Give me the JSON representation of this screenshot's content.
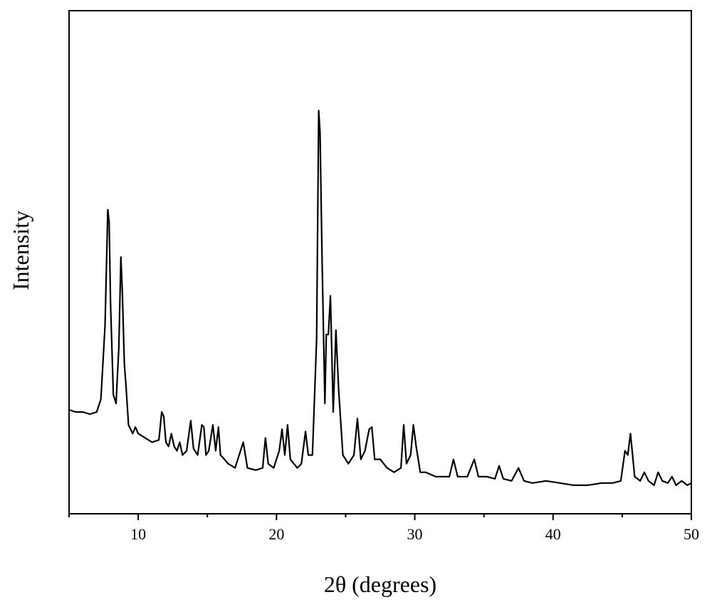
{
  "chart_data": {
    "type": "line",
    "title": "",
    "xlabel": "2θ (degrees)",
    "ylabel": "Intensity",
    "xlim": [
      5,
      50
    ],
    "ylim": [
      0,
      1
    ],
    "xticks": [
      10,
      20,
      30,
      40,
      50
    ],
    "yticks": [],
    "grid": false,
    "legend": "none",
    "line_color": "#000000",
    "series": [
      {
        "x": [
          5.0,
          5.5,
          6.0,
          6.5,
          7.0,
          7.3,
          7.6,
          7.8,
          7.9,
          8.0,
          8.2,
          8.4,
          8.6,
          8.75,
          8.85,
          9.0,
          9.1,
          9.3,
          9.6,
          9.8,
          10.0,
          10.5,
          11.0,
          11.5,
          11.7,
          11.85,
          12.0,
          12.2,
          12.4,
          12.6,
          12.8,
          13.0,
          13.2,
          13.5,
          13.8,
          14.0,
          14.3,
          14.6,
          14.75,
          14.9,
          15.1,
          15.4,
          15.6,
          15.8,
          15.95,
          16.1,
          16.5,
          17.0,
          17.3,
          17.6,
          17.9,
          18.5,
          19.0,
          19.2,
          19.4,
          19.8,
          20.2,
          20.4,
          20.6,
          20.8,
          21.0,
          21.5,
          21.8,
          22.1,
          22.3,
          22.6,
          22.9,
          23.05,
          23.15,
          23.3,
          23.5,
          23.6,
          23.75,
          23.9,
          24.1,
          24.3,
          24.5,
          24.8,
          25.2,
          25.6,
          25.85,
          26.1,
          26.4,
          26.7,
          26.9,
          27.1,
          27.5,
          28.0,
          28.5,
          29.0,
          29.2,
          29.4,
          29.7,
          29.9,
          30.1,
          30.4,
          30.8,
          31.5,
          32.0,
          32.5,
          32.8,
          33.1,
          33.8,
          34.3,
          34.6,
          35.2,
          35.8,
          36.1,
          36.4,
          37.0,
          37.5,
          37.9,
          38.5,
          39.5,
          40.5,
          41.5,
          42.5,
          43.5,
          44.3,
          44.9,
          45.2,
          45.4,
          45.6,
          45.9,
          46.3,
          46.6,
          46.9,
          47.3,
          47.6,
          47.9,
          48.3,
          48.6,
          48.9,
          49.3,
          49.7,
          50.0
        ],
        "values": [
          0.205,
          0.2,
          0.2,
          0.195,
          0.2,
          0.23,
          0.4,
          0.67,
          0.64,
          0.45,
          0.24,
          0.22,
          0.35,
          0.56,
          0.48,
          0.31,
          0.27,
          0.17,
          0.15,
          0.165,
          0.15,
          0.14,
          0.13,
          0.135,
          0.2,
          0.19,
          0.13,
          0.12,
          0.15,
          0.12,
          0.11,
          0.13,
          0.1,
          0.11,
          0.18,
          0.115,
          0.1,
          0.17,
          0.165,
          0.1,
          0.11,
          0.17,
          0.11,
          0.165,
          0.1,
          0.095,
          0.08,
          0.07,
          0.1,
          0.13,
          0.07,
          0.065,
          0.07,
          0.14,
          0.08,
          0.07,
          0.11,
          0.16,
          0.1,
          0.17,
          0.09,
          0.07,
          0.08,
          0.155,
          0.1,
          0.1,
          0.37,
          0.9,
          0.85,
          0.55,
          0.22,
          0.38,
          0.38,
          0.47,
          0.2,
          0.39,
          0.25,
          0.1,
          0.08,
          0.1,
          0.185,
          0.09,
          0.11,
          0.16,
          0.165,
          0.09,
          0.09,
          0.07,
          0.06,
          0.07,
          0.17,
          0.08,
          0.1,
          0.17,
          0.12,
          0.06,
          0.06,
          0.05,
          0.05,
          0.05,
          0.09,
          0.05,
          0.05,
          0.09,
          0.05,
          0.05,
          0.045,
          0.075,
          0.045,
          0.04,
          0.07,
          0.04,
          0.035,
          0.04,
          0.035,
          0.03,
          0.03,
          0.035,
          0.035,
          0.04,
          0.11,
          0.1,
          0.15,
          0.05,
          0.04,
          0.06,
          0.04,
          0.03,
          0.06,
          0.04,
          0.035,
          0.05,
          0.03,
          0.04,
          0.03,
          0.035
        ]
      }
    ]
  }
}
